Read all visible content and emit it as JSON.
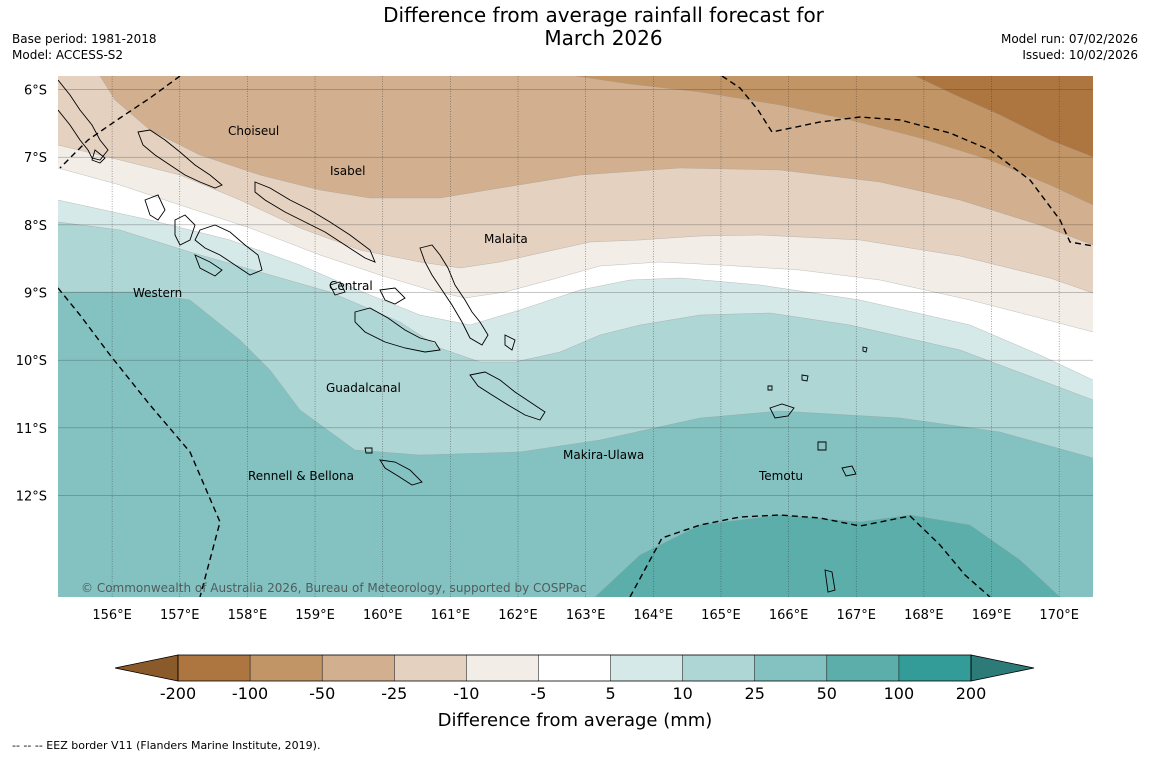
{
  "title": {
    "line1": "Difference from average rainfall forecast for",
    "line2": "March 2026"
  },
  "meta_left": {
    "base_period": "Base period: 1981-2018",
    "model": "Model: ACCESS-S2"
  },
  "meta_right": {
    "model_run": "Model run: 07/02/2026",
    "issued": "Issued: 10/02/2026"
  },
  "map": {
    "lat_labels": [
      "6°S",
      "7°S",
      "8°S",
      "9°S",
      "10°S",
      "11°S",
      "12°S"
    ],
    "lon_labels": [
      "156°E",
      "157°E",
      "158°E",
      "159°E",
      "160°E",
      "161°E",
      "162°E",
      "163°E",
      "164°E",
      "165°E",
      "166°E",
      "167°E",
      "168°E",
      "169°E",
      "170°E"
    ],
    "lat_values": [
      -6,
      -7,
      -8,
      -9,
      -10,
      -11,
      -12
    ],
    "lon_values": [
      156,
      157,
      158,
      159,
      160,
      161,
      162,
      163,
      164,
      165,
      166,
      167,
      168,
      169,
      170
    ],
    "regions": {
      "choiseul": "Choiseul",
      "isabel": "Isabel",
      "malaita": "Malaita",
      "central": "Central",
      "western": "Western",
      "guadalcanal": "Guadalcanal",
      "makira_ulawa": "Makira-Ulawa",
      "rennell_bellona": "Rennell & Bellona",
      "temotu": "Temotu"
    },
    "copyright": "© Commonwealth of Australia 2026, Bureau of Meteorology, supported by COSPPac"
  },
  "colorbar": {
    "ticks": [
      "-200",
      "-100",
      "-50",
      "-25",
      "-10",
      "-5",
      "5",
      "10",
      "25",
      "50",
      "100",
      "200"
    ],
    "colors": [
      "#8b5a2b",
      "#ad7540",
      "#c29567",
      "#d2b08f",
      "#e4d1c0",
      "#f3ede7",
      "#ffffff",
      "#d5e9e8",
      "#add6d5",
      "#84c2c1",
      "#5caeab",
      "#349c98",
      "#2d7b78"
    ],
    "label": "Difference from average (mm)"
  },
  "footer": "--  --  -- EEZ border V11 (Flanders Marine Institute, 2019)."
}
